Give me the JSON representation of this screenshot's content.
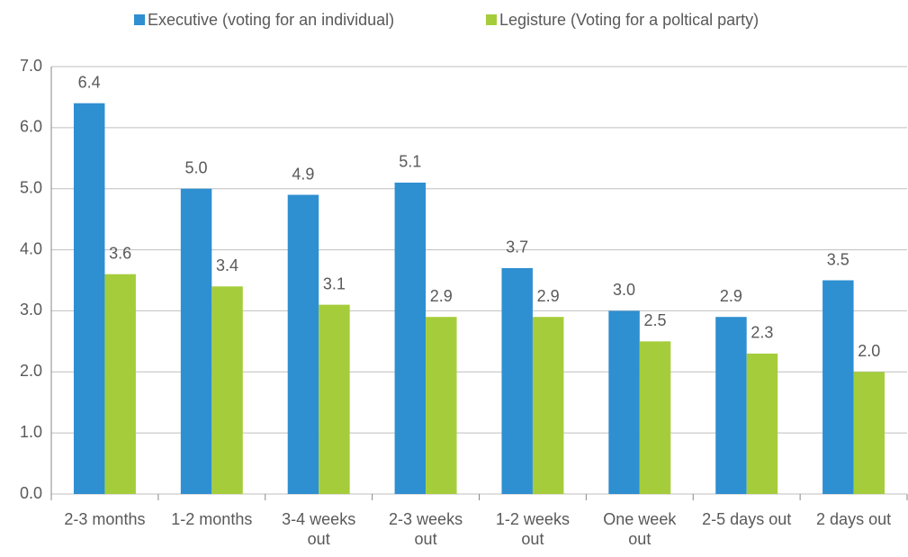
{
  "chart_data": {
    "type": "bar",
    "categories": [
      "2-3 months",
      "1-2 months",
      "3-4 weeks out",
      "2-3 weeks out",
      "1-2 weeks out",
      "One week out",
      "2-5 days out",
      "2 days out"
    ],
    "series": [
      {
        "name": "Executive (voting for an individual)",
        "color": "#2e8fd1",
        "values": [
          6.4,
          5.0,
          4.9,
          5.1,
          3.7,
          3.0,
          2.9,
          3.5
        ],
        "value_labels": [
          "6.4",
          "5.0",
          "4.9",
          "5.1",
          "3.7",
          "3.0",
          "2.9",
          "3.5"
        ]
      },
      {
        "name": "Legisture (Voting for a poltical party)",
        "color": "#a5cd3b",
        "values": [
          3.6,
          3.4,
          3.1,
          2.9,
          2.9,
          2.5,
          2.3,
          2.0
        ],
        "value_labels": [
          "3.6",
          "3.4",
          "3.1",
          "2.9",
          "2.9",
          "2.5",
          "2.3",
          "2.0"
        ]
      }
    ],
    "ylim": [
      0,
      7
    ],
    "yticks": [
      {
        "value": 0,
        "label": "0.0"
      },
      {
        "value": 1,
        "label": "1.0"
      },
      {
        "value": 2,
        "label": "2.0"
      },
      {
        "value": 3,
        "label": "3.0"
      },
      {
        "value": 4,
        "label": "4.0"
      },
      {
        "value": 5,
        "label": "5.0"
      },
      {
        "value": 6,
        "label": "6.0"
      },
      {
        "value": 7,
        "label": "7.0"
      }
    ],
    "grid": true,
    "legend": "top"
  }
}
